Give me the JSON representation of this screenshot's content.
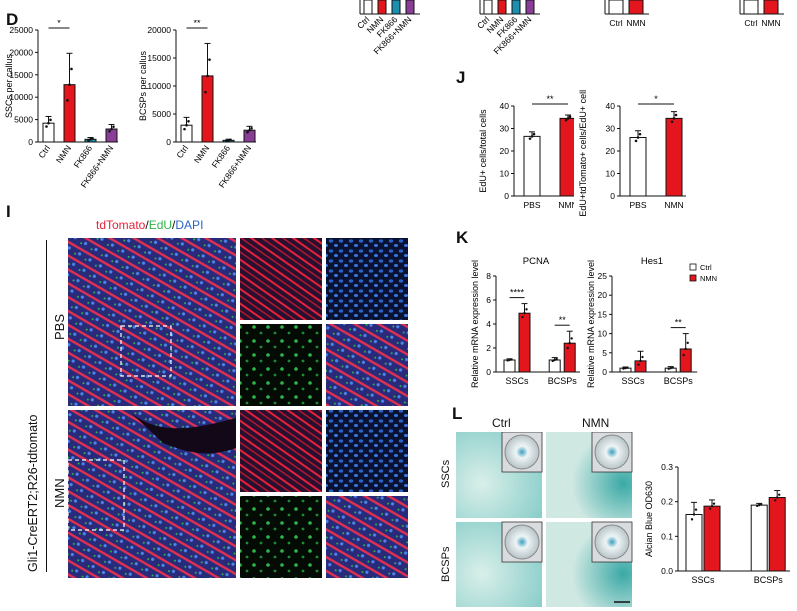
{
  "panels": {
    "D": "D",
    "I": "I",
    "J": "J",
    "K": "K",
    "L": "L"
  },
  "colors": {
    "ctrl": "#ffffff",
    "nmn": "#e3161d",
    "fk866": "#1b8fae",
    "fk866nmn": "#8a3d97",
    "stroke": "#111111",
    "alcian": "#7fc9c6",
    "tdtomato": "#e8213a",
    "edu": "#2fb54a",
    "dapi": "#2a63c7"
  },
  "top_partial": {
    "categories": [
      "Ctrl",
      "NMN",
      "FK866",
      "FK866+NMN"
    ],
    "freq_categories": [
      "Ctrl",
      "NMN"
    ]
  },
  "chart_data": [
    {
      "type": "bar",
      "panel": "D",
      "ylabel": "SSCs per callus",
      "categories": [
        "Ctrl",
        "NMN",
        "FK866",
        "FK866+NMN"
      ],
      "values": [
        4200,
        12800,
        600,
        2900
      ],
      "errors": [
        1500,
        7000,
        400,
        1000
      ],
      "ylim": [
        0,
        25000
      ],
      "yticks": [
        "0",
        "5000",
        "10000",
        "15000",
        "20000",
        "25000"
      ],
      "sig": [
        "*"
      ]
    },
    {
      "type": "bar",
      "panel": "D",
      "ylabel": "BCSPs per callus",
      "categories": [
        "Ctrl",
        "NMN",
        "FK866",
        "FK866+NMN"
      ],
      "values": [
        3000,
        11800,
        300,
        2100
      ],
      "errors": [
        1400,
        5800,
        200,
        700
      ],
      "ylim": [
        0,
        20000
      ],
      "yticks": [
        "0",
        "5000",
        "10000",
        "15000",
        "20000"
      ],
      "sig": [
        "**"
      ]
    },
    {
      "type": "bar",
      "panel": "J",
      "ylabel": "EdU+ cells/total cells",
      "categories": [
        "PBS",
        "NMN"
      ],
      "values": [
        26.5,
        34.5
      ],
      "errors": [
        2,
        1.5
      ],
      "ylim": [
        0,
        40
      ],
      "yticks": [
        "0",
        "10",
        "20",
        "30",
        "40"
      ],
      "sig": [
        "**"
      ]
    },
    {
      "type": "bar",
      "panel": "J",
      "ylabel": "EdU+tdTomato+ cells/EdU+ cells",
      "categories": [
        "PBS",
        "NMN"
      ],
      "values": [
        26,
        34.5
      ],
      "errors": [
        3,
        3
      ],
      "ylim": [
        0,
        40
      ],
      "yticks": [
        "0",
        "10",
        "20",
        "30",
        "40"
      ],
      "sig": [
        "*"
      ]
    },
    {
      "type": "bar",
      "panel": "K",
      "title": "PCNA",
      "ylabel": "Relative mRNA expression level",
      "categories": [
        "SSCs",
        "BCSPs"
      ],
      "series": [
        {
          "name": "Ctrl",
          "values": [
            1.0,
            1.0
          ],
          "errors": [
            0.1,
            0.2
          ]
        },
        {
          "name": "NMN",
          "values": [
            4.9,
            2.4
          ],
          "errors": [
            0.8,
            1.0
          ]
        }
      ],
      "ylim": [
        0,
        8
      ],
      "yticks": [
        "0",
        "2",
        "4",
        "6",
        "8"
      ],
      "sig": [
        "****",
        "**"
      ]
    },
    {
      "type": "bar",
      "panel": "K",
      "title": "Hes1",
      "ylabel": "Relative mRNA expression level",
      "categories": [
        "SSCs",
        "BCSPs"
      ],
      "series": [
        {
          "name": "Ctrl",
          "values": [
            1.0,
            1.0
          ],
          "errors": [
            0.3,
            0.4
          ]
        },
        {
          "name": "NMN",
          "values": [
            2.9,
            6.0
          ],
          "errors": [
            2.5,
            4.0
          ]
        }
      ],
      "ylim": [
        0,
        25
      ],
      "yticks": [
        "0",
        "5",
        "10",
        "15",
        "20",
        "25"
      ],
      "sig": [
        "**"
      ],
      "legend": "top-right"
    },
    {
      "type": "bar",
      "panel": "L",
      "ylabel": "Alcian Blue OD630",
      "categories": [
        "SSCs",
        "BCSPs"
      ],
      "series": [
        {
          "name": "Ctrl",
          "values": [
            0.163,
            0.19
          ],
          "errors": [
            0.035,
            0.005
          ]
        },
        {
          "name": "NMN",
          "values": [
            0.187,
            0.212
          ],
          "errors": [
            0.018,
            0.02
          ]
        }
      ],
      "ylim": [
        0,
        0.3
      ],
      "yticks": [
        "0.0",
        "0.1",
        "0.2",
        "0.3"
      ]
    }
  ],
  "panel_I": {
    "stain_title": {
      "td": "tdTomato",
      "sep1": "/",
      "edu": "EdU",
      "sep2": "/",
      "dapi": "DAPI"
    },
    "genotype": "Gli1-CreERT2;R26-tdtomato",
    "rows": [
      "PBS",
      "NMN"
    ]
  },
  "panel_L": {
    "cols": [
      "Ctrl",
      "NMN"
    ],
    "rows": [
      "SSCs",
      "BCSPs"
    ]
  }
}
